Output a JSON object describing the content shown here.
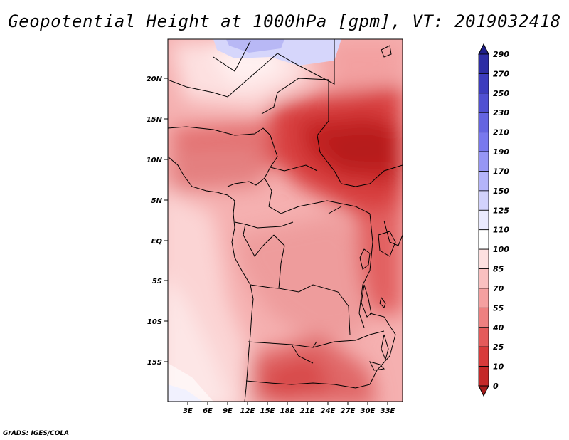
{
  "title": "Geopotential Height at 1000hPa [gpm], VT: 2019032418",
  "footer": "GrADS: IGES/COLA",
  "map": {
    "lat_labels": [
      "20N",
      "15N",
      "10N",
      "5N",
      "EQ",
      "5S",
      "10S",
      "15S"
    ],
    "lon_labels": [
      "3E",
      "6E",
      "9E",
      "12E",
      "15E",
      "18E",
      "21E",
      "24E",
      "27E",
      "30E",
      "33E"
    ]
  },
  "colorbar": {
    "levels": [
      "290",
      "270",
      "250",
      "230",
      "210",
      "190",
      "170",
      "150",
      "125",
      "110",
      "100",
      "85",
      "70",
      "55",
      "40",
      "25",
      "10",
      "0"
    ],
    "colors": [
      "#1e1e8c",
      "#2d2da5",
      "#3c3cbe",
      "#5050d2",
      "#6464e1",
      "#7878ee",
      "#9696f5",
      "#b4b4fa",
      "#d2d2fc",
      "#ebebff",
      "#ffffff",
      "#fde0e0",
      "#fac0c0",
      "#f5a0a0",
      "#ee8080",
      "#e45a5a",
      "#d83a3a",
      "#c52828",
      "#a81c1c"
    ]
  }
}
